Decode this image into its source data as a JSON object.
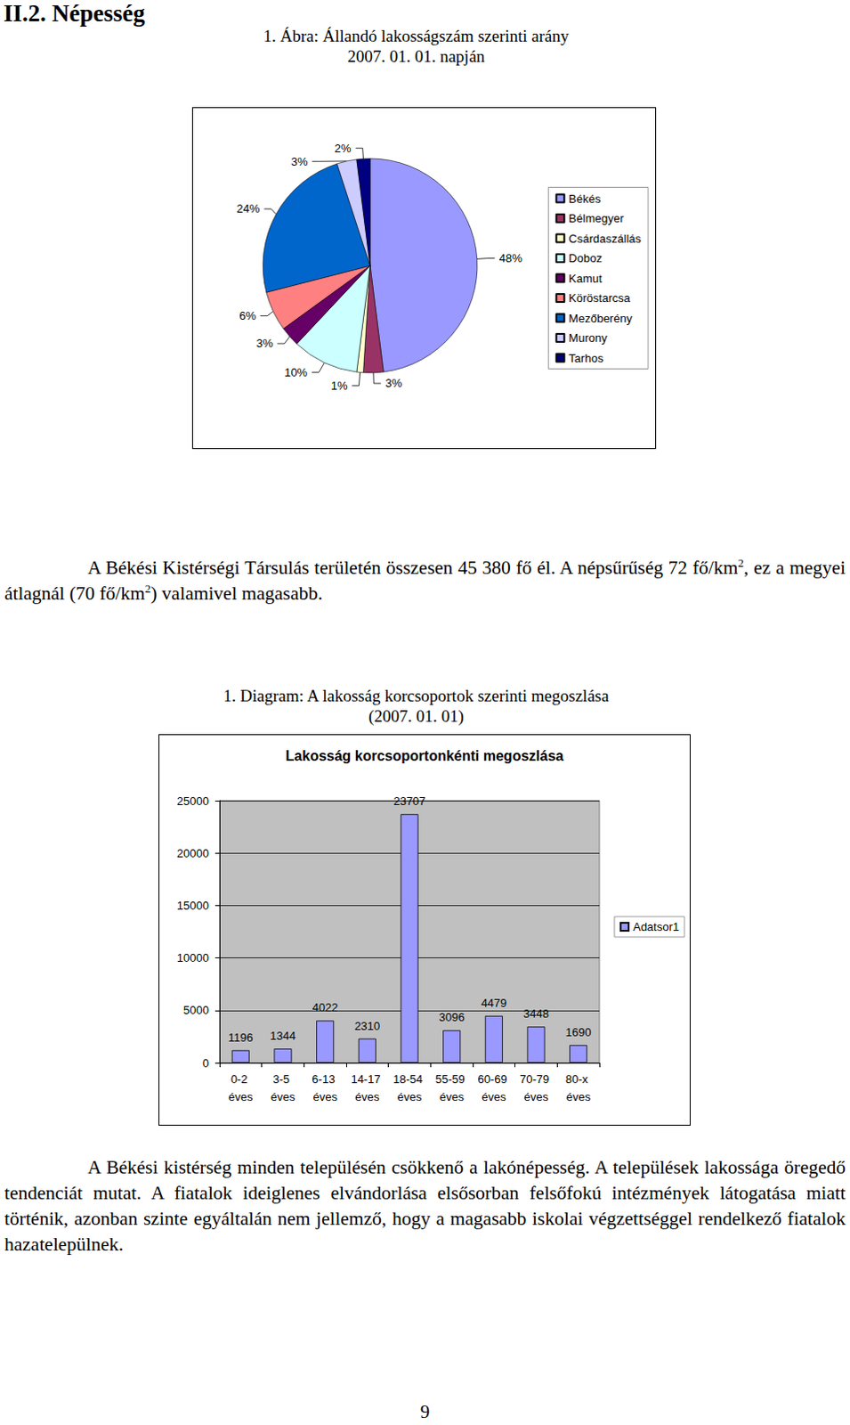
{
  "document": {
    "heading": "II.2. Népesség",
    "figure_captions": [
      [
        "1. Ábra: Állandó lakosságszám szerinti arány",
        "2007. 01. 01. napján"
      ],
      [
        "1. Diagram: A lakosság korcsoportok szerinti megoszlása",
        "(2007. 01. 01)"
      ]
    ],
    "paragraphs": [
      [
        "A Békési Kistérségi Társulás területén összesen 45 380 fő él. A népsűrűség 72 fő/km",
        {
          "sup": "2"
        },
        ", ez a megyei átlagnál (70 fő/km",
        {
          "sup": "2"
        },
        ") valamivel magasabb."
      ],
      [
        "A Békési kistérség minden településén csökkenő a lakónépesség. A települések lakossága öregedő tendenciát mutat. A fiatalok ideiglenes elvándorlása elsősorban felsőfokú intézmények látogatása miatt történik, azonban szinte egyáltalán nem jellemző, hogy a magasabb iskolai végzettséggel rendelkező fiatalok hazatelepülnek."
      ]
    ],
    "page_number": "9"
  },
  "chart_data": [
    {
      "type": "pie",
      "categories": [
        "Békés",
        "Bélmegyer",
        "Csárdaszállás",
        "Doboz",
        "Kamut",
        "Köröstarcsa",
        "Mezőberény",
        "Murony",
        "Tarhos"
      ],
      "values": [
        48,
        3,
        1,
        10,
        3,
        6,
        24,
        3,
        2
      ],
      "value_labels": [
        "48%",
        "3%",
        "1%",
        "10%",
        "3%",
        "6%",
        "24%",
        "3%",
        "2%"
      ],
      "colors": [
        "#9999FF",
        "#993366",
        "#FFFFCC",
        "#CCFFFF",
        "#660066",
        "#FF8080",
        "#0066CC",
        "#CCCCFF",
        "#000080"
      ],
      "legend": "right",
      "data_labels": true
    },
    {
      "type": "bar",
      "title": "Lakosság korcsoportonkénti megoszlása",
      "categories": [
        "0-2 éves",
        "3-5 éves",
        "6-13 éves",
        "14-17 éves",
        "18-54 éves",
        "55-59 éves",
        "60-69 éves",
        "70-79 éves",
        "80-x éves"
      ],
      "series": [
        {
          "name": "Adatsor1",
          "color": "#9999FF",
          "values": [
            1196,
            1344,
            4022,
            2310,
            23707,
            3096,
            4479,
            3448,
            1690
          ]
        }
      ],
      "ylim": [
        0,
        25000
      ],
      "yticks": [
        0,
        5000,
        10000,
        15000,
        20000,
        25000
      ],
      "grid": true,
      "legend": "right",
      "data_labels": true
    }
  ]
}
